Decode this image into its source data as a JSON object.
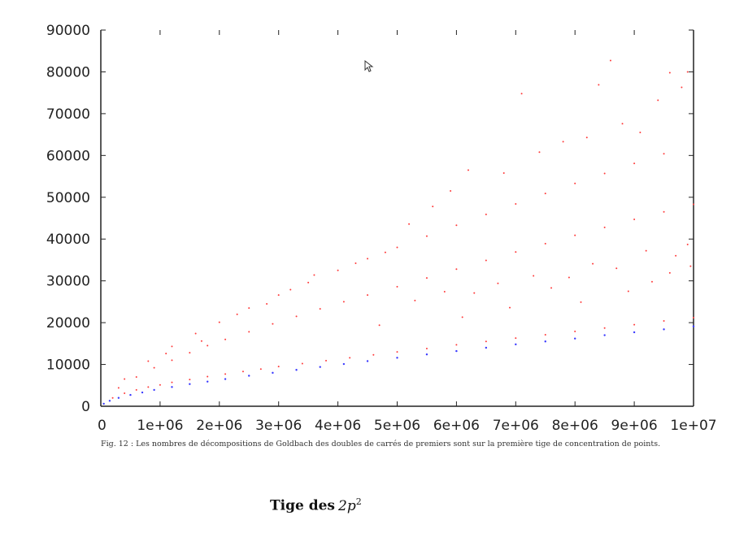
{
  "chart_data": {
    "type": "scatter",
    "title": "",
    "xlabel": "",
    "ylabel": "",
    "xlim": [
      0,
      10000000
    ],
    "ylim": [
      0,
      90000
    ],
    "x_ticks": [
      0,
      1000000,
      2000000,
      3000000,
      4000000,
      5000000,
      6000000,
      7000000,
      8000000,
      9000000,
      10000000
    ],
    "x_tick_labels": [
      "0",
      "1e+06",
      "2e+06",
      "3e+06",
      "4e+06",
      "5e+06",
      "6e+06",
      "7e+06",
      "8e+06",
      "9e+06",
      "1e+07"
    ],
    "y_ticks": [
      0,
      10000,
      20000,
      30000,
      40000,
      50000,
      60000,
      70000,
      80000,
      90000
    ],
    "y_tick_labels": [
      "0",
      "10000",
      "20000",
      "30000",
      "40000",
      "50000",
      "60000",
      "70000",
      "80000",
      "90000"
    ],
    "grid": false,
    "series": [
      {
        "color": "#ff3b3b",
        "points": [
          [
            200000,
            2000
          ],
          [
            400000,
            3100
          ],
          [
            600000,
            3900
          ],
          [
            800000,
            4600
          ],
          [
            1000000,
            5100
          ],
          [
            1200000,
            5700
          ],
          [
            1500000,
            6400
          ],
          [
            1800000,
            7100
          ],
          [
            2100000,
            7700
          ],
          [
            2400000,
            8300
          ],
          [
            2700000,
            8900
          ],
          [
            3000000,
            9500
          ],
          [
            3400000,
            10200
          ],
          [
            3800000,
            10900
          ],
          [
            4200000,
            11600
          ],
          [
            4600000,
            12300
          ],
          [
            5000000,
            13000
          ],
          [
            5500000,
            13800
          ],
          [
            6000000,
            14700
          ],
          [
            6500000,
            15500
          ],
          [
            7000000,
            16300
          ],
          [
            7500000,
            17100
          ],
          [
            8000000,
            17900
          ],
          [
            8500000,
            18700
          ],
          [
            9000000,
            19500
          ],
          [
            9500000,
            20400
          ],
          [
            10000000,
            21200
          ],
          [
            300000,
            4400
          ],
          [
            600000,
            7000
          ],
          [
            900000,
            9200
          ],
          [
            1200000,
            11000
          ],
          [
            1500000,
            12800
          ],
          [
            1800000,
            14500
          ],
          [
            2100000,
            16000
          ],
          [
            2500000,
            17800
          ],
          [
            2900000,
            19700
          ],
          [
            3300000,
            21500
          ],
          [
            3700000,
            23300
          ],
          [
            4100000,
            25000
          ],
          [
            4500000,
            26600
          ],
          [
            5000000,
            28600
          ],
          [
            5500000,
            30700
          ],
          [
            6000000,
            32800
          ],
          [
            6500000,
            34900
          ],
          [
            7000000,
            36900
          ],
          [
            7500000,
            38900
          ],
          [
            8000000,
            40900
          ],
          [
            8500000,
            42800
          ],
          [
            9000000,
            44700
          ],
          [
            9500000,
            46500
          ],
          [
            10000000,
            48300
          ],
          [
            400000,
            6500
          ],
          [
            800000,
            10800
          ],
          [
            1200000,
            14300
          ],
          [
            1600000,
            17400
          ],
          [
            2000000,
            20100
          ],
          [
            2500000,
            23500
          ],
          [
            3000000,
            26600
          ],
          [
            3500000,
            29600
          ],
          [
            4000000,
            32500
          ],
          [
            4500000,
            35300
          ],
          [
            5000000,
            38000
          ],
          [
            5500000,
            40700
          ],
          [
            6000000,
            43300
          ],
          [
            6500000,
            45900
          ],
          [
            7000000,
            48400
          ],
          [
            7500000,
            50900
          ],
          [
            8000000,
            53300
          ],
          [
            8500000,
            55700
          ],
          [
            9000000,
            58100
          ],
          [
            9500000,
            60400
          ],
          [
            1100000,
            12600
          ],
          [
            1700000,
            15600
          ],
          [
            2300000,
            22000
          ],
          [
            2800000,
            24500
          ],
          [
            3200000,
            27900
          ],
          [
            3600000,
            31400
          ],
          [
            4300000,
            34200
          ],
          [
            4800000,
            36800
          ],
          [
            5200000,
            43600
          ],
          [
            5600000,
            47800
          ],
          [
            5900000,
            51500
          ],
          [
            6200000,
            56500
          ],
          [
            6800000,
            55800
          ],
          [
            7100000,
            74800
          ],
          [
            7400000,
            60800
          ],
          [
            7800000,
            63300
          ],
          [
            8200000,
            64300
          ],
          [
            8400000,
            76900
          ],
          [
            8600000,
            82700
          ],
          [
            8800000,
            67600
          ],
          [
            9100000,
            65500
          ],
          [
            9400000,
            73200
          ],
          [
            9600000,
            79800
          ],
          [
            9800000,
            76300
          ],
          [
            9900000,
            80000
          ],
          [
            5300000,
            25300
          ],
          [
            5800000,
            27400
          ],
          [
            6300000,
            27100
          ],
          [
            6700000,
            29400
          ],
          [
            7300000,
            31200
          ],
          [
            7600000,
            28300
          ],
          [
            7900000,
            30800
          ],
          [
            8300000,
            34100
          ],
          [
            8700000,
            33000
          ],
          [
            9200000,
            37200
          ],
          [
            9700000,
            36000
          ],
          [
            9900000,
            38700
          ],
          [
            4700000,
            19400
          ],
          [
            6100000,
            21300
          ],
          [
            6900000,
            23600
          ],
          [
            8100000,
            24900
          ],
          [
            8900000,
            27500
          ],
          [
            9300000,
            29800
          ],
          [
            9600000,
            31900
          ],
          [
            9950000,
            33500
          ]
        ]
      },
      {
        "color": "#3a3aff",
        "points": [
          [
            50000,
            600
          ],
          [
            150000,
            1300
          ],
          [
            300000,
            2000
          ],
          [
            500000,
            2700
          ],
          [
            700000,
            3300
          ],
          [
            900000,
            3900
          ],
          [
            1200000,
            4600
          ],
          [
            1500000,
            5300
          ],
          [
            1800000,
            5900
          ],
          [
            2100000,
            6500
          ],
          [
            2500000,
            7300
          ],
          [
            2900000,
            8000
          ],
          [
            3300000,
            8700
          ],
          [
            3700000,
            9400
          ],
          [
            4100000,
            10100
          ],
          [
            4500000,
            10800
          ],
          [
            5000000,
            11600
          ],
          [
            5500000,
            12400
          ],
          [
            6000000,
            13200
          ],
          [
            6500000,
            14000
          ],
          [
            7000000,
            14800
          ],
          [
            7500000,
            15500
          ],
          [
            8000000,
            16200
          ],
          [
            8500000,
            17000
          ],
          [
            9000000,
            17700
          ],
          [
            9500000,
            18400
          ],
          [
            10000000,
            19100
          ]
        ]
      }
    ]
  },
  "caption": "Fig. 12 : Les nombres de décompositions de Goldbach des doubles de carrés de premiers sont sur la première tige de concentration de points.",
  "section_title": {
    "bold": "Tige des",
    "math": "2p",
    "sup": "2"
  }
}
